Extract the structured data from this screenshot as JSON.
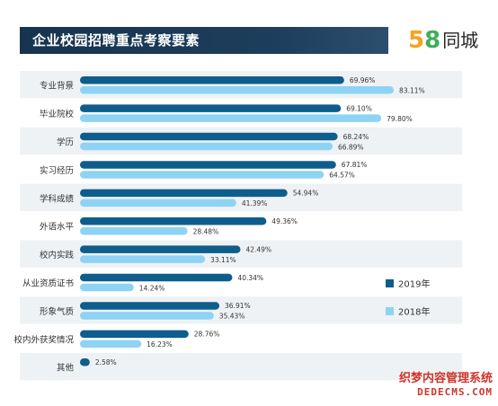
{
  "header": {
    "title": "企业校园招聘重点考察要素",
    "logo": {
      "digit1": "5",
      "digit2": "8",
      "text": "同城"
    }
  },
  "colors": {
    "series_2019": "#0e5d8c",
    "series_2018": "#8fd3f4",
    "row_band": "#eef2f5",
    "title_bar": "#1a3a58"
  },
  "watermark": {
    "line1": "织梦内容管理系统",
    "line2": "DEDECMS.COM"
  },
  "chart_data": {
    "type": "bar",
    "orientation": "horizontal",
    "title": "企业校园招聘重点考察要素",
    "categories": [
      "专业背景",
      "毕业院校",
      "学历",
      "实习经历",
      "学科成绩",
      "外语水平",
      "校内实践",
      "从业资质证书",
      "形象气质",
      "校内外获奖情况",
      "其他"
    ],
    "series": [
      {
        "name": "2019年",
        "values": [
          69.96,
          69.1,
          68.24,
          67.81,
          54.94,
          49.36,
          42.49,
          40.34,
          36.91,
          28.76,
          2.58
        ],
        "labels": [
          "69.96%",
          "69.10%",
          "68.24%",
          "67.81%",
          "54.94%",
          "49.36%",
          "42.49%",
          "40.34%",
          "36.91%",
          "28.76%",
          "2.58%"
        ]
      },
      {
        "name": "2018年",
        "values": [
          83.11,
          79.8,
          66.89,
          64.57,
          41.39,
          28.48,
          33.11,
          14.24,
          35.43,
          16.23,
          null
        ],
        "labels": [
          "83.11%",
          "79.80%",
          "66.89%",
          "64.57%",
          "41.39%",
          "28.48%",
          "33.11%",
          "14.24%",
          "35.43%",
          "16.23%",
          ""
        ]
      }
    ],
    "legend_position": "right",
    "xlim": [
      0,
      100
    ]
  }
}
